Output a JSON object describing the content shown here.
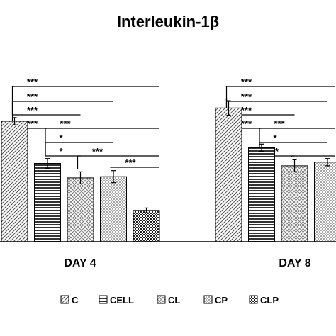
{
  "chart_data": {
    "type": "bar",
    "title": "Interleukin-1β",
    "categories": [
      "DAY 4",
      "DAY 8"
    ],
    "series": [
      {
        "name": "C",
        "values": [
          100,
          111
        ],
        "errors": [
          3,
          6
        ],
        "pattern": "diag"
      },
      {
        "name": "CELL",
        "values": [
          65,
          78
        ],
        "errors": [
          4,
          3
        ],
        "pattern": "hstripe"
      },
      {
        "name": "CL",
        "values": [
          53,
          63
        ],
        "errors": [
          5,
          5
        ],
        "pattern": "grid"
      },
      {
        "name": "CP",
        "values": [
          54,
          66
        ],
        "errors": [
          5,
          3
        ],
        "pattern": "dots"
      },
      {
        "name": "CLP",
        "values": [
          26,
          null
        ],
        "errors": [
          2,
          null
        ],
        "pattern": "check"
      }
    ],
    "ylim": [
      0,
      150
    ],
    "grid": false,
    "legend": "bottom",
    "significance": [
      {
        "group": 0,
        "from": 0,
        "to": 4,
        "label": "***",
        "level": 0
      },
      {
        "group": 0,
        "from": 0,
        "to": 3,
        "label": "***",
        "level": 1
      },
      {
        "group": 0,
        "from": 0,
        "to": 2,
        "label": "***",
        "level": 2
      },
      {
        "group": 0,
        "from": 0,
        "to": 1,
        "label": "***",
        "level": 3
      },
      {
        "group": 0,
        "from": 1,
        "to": 4,
        "label": "***",
        "level": 3
      },
      {
        "group": 0,
        "from": 1,
        "to": 3,
        "label": "*",
        "level": 4
      },
      {
        "group": 0,
        "from": 1,
        "to": 2,
        "label": "*",
        "level": 5
      },
      {
        "group": 0,
        "from": 2,
        "to": 4,
        "label": "***",
        "level": 5
      },
      {
        "group": 0,
        "from": 3,
        "to": 4,
        "label": "***",
        "level": 6
      },
      {
        "group": 1,
        "from": 0,
        "to": 4,
        "label": "***",
        "level": 0
      },
      {
        "group": 1,
        "from": 0,
        "to": 3,
        "label": "***",
        "level": 1
      },
      {
        "group": 1,
        "from": 0,
        "to": 2,
        "label": "***",
        "level": 2
      },
      {
        "group": 1,
        "from": 0,
        "to": 1,
        "label": "***",
        "level": 3
      },
      {
        "group": 1,
        "from": 1,
        "to": 4,
        "label": "***",
        "level": 3
      },
      {
        "group": 1,
        "from": 1,
        "to": 3,
        "label": "*",
        "level": 4
      },
      {
        "group": 1,
        "from": 1,
        "to": 2,
        "label": "**",
        "level": 5
      },
      {
        "group": 1,
        "from": 2,
        "to": 4,
        "label": "",
        "level": 5
      }
    ]
  }
}
